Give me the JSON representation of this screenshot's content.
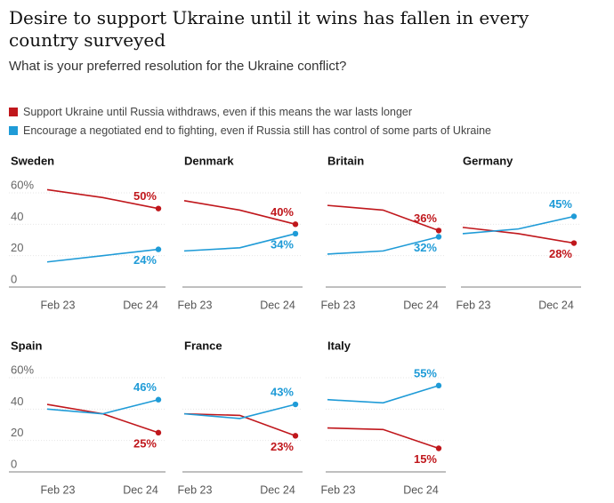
{
  "header": {
    "title": "Desire to support Ukraine until it wins has fallen in every country surveyed",
    "subtitle": "What is your preferred resolution for the Ukraine conflict?"
  },
  "legend": [
    {
      "name": "Support Ukraine until Russia withdraws, even if this means the war lasts longer",
      "color": "#c0171c"
    },
    {
      "name": "Encourage a negotiated end to fighting, even if Russia still has control of some parts of Ukraine",
      "color": "#1f9bd7"
    }
  ],
  "axes": {
    "ylim": [
      0,
      60
    ],
    "yticks": [
      0,
      20,
      40,
      {
        "value": 60,
        "label": "60%"
      }
    ],
    "grid": true
  },
  "chart_data": [
    {
      "type": "line",
      "title": "Sweden",
      "categories": [
        "Feb 23",
        null,
        "Dec 24"
      ],
      "series": [
        {
          "color": "#c0171c",
          "values": [
            62,
            57,
            50
          ],
          "value_labels": [
            null,
            null,
            "50%"
          ]
        },
        {
          "color": "#1f9bd7",
          "values": [
            16,
            20,
            24
          ],
          "value_labels": [
            null,
            null,
            "24%"
          ]
        }
      ]
    },
    {
      "type": "line",
      "title": "Denmark",
      "categories": [
        "Feb 23",
        null,
        "Dec 24"
      ],
      "series": [
        {
          "color": "#c0171c",
          "values": [
            55,
            49,
            40
          ],
          "value_labels": [
            null,
            null,
            "40%"
          ]
        },
        {
          "color": "#1f9bd7",
          "values": [
            23,
            25,
            34
          ],
          "value_labels": [
            null,
            null,
            "34%"
          ]
        }
      ]
    },
    {
      "type": "line",
      "title": "Britain",
      "categories": [
        "Feb 23",
        null,
        "Dec 24"
      ],
      "series": [
        {
          "color": "#c0171c",
          "values": [
            52,
            49,
            36
          ],
          "value_labels": [
            null,
            null,
            "36%"
          ]
        },
        {
          "color": "#1f9bd7",
          "values": [
            21,
            23,
            32
          ],
          "value_labels": [
            null,
            null,
            "32%"
          ]
        }
      ]
    },
    {
      "type": "line",
      "title": "Germany",
      "categories": [
        "Feb 23",
        null,
        "Dec 24"
      ],
      "series": [
        {
          "color": "#c0171c",
          "values": [
            38,
            34,
            28
          ],
          "value_labels": [
            null,
            null,
            "28%"
          ]
        },
        {
          "color": "#1f9bd7",
          "values": [
            34,
            37,
            45
          ],
          "value_labels": [
            null,
            null,
            "45%"
          ]
        }
      ]
    },
    {
      "type": "line",
      "title": "Spain",
      "categories": [
        "Feb 23",
        null,
        "Dec 24"
      ],
      "series": [
        {
          "color": "#c0171c",
          "values": [
            43,
            37,
            25
          ],
          "value_labels": [
            null,
            null,
            "25%"
          ]
        },
        {
          "color": "#1f9bd7",
          "values": [
            40,
            37,
            46
          ],
          "value_labels": [
            null,
            null,
            "46%"
          ]
        }
      ]
    },
    {
      "type": "line",
      "title": "France",
      "categories": [
        "Feb 23",
        null,
        "Dec 24"
      ],
      "series": [
        {
          "color": "#c0171c",
          "values": [
            37,
            36,
            23
          ],
          "value_labels": [
            null,
            null,
            "23%"
          ]
        },
        {
          "color": "#1f9bd7",
          "values": [
            37,
            34,
            43
          ],
          "value_labels": [
            null,
            null,
            "43%"
          ]
        }
      ]
    },
    {
      "type": "line",
      "title": "Italy",
      "categories": [
        "Feb 23",
        null,
        "Dec 24"
      ],
      "series": [
        {
          "color": "#c0171c",
          "values": [
            28,
            27,
            15
          ],
          "value_labels": [
            null,
            null,
            "15%"
          ]
        },
        {
          "color": "#1f9bd7",
          "values": [
            46,
            44,
            55
          ],
          "value_labels": [
            null,
            null,
            "55%"
          ]
        }
      ]
    }
  ]
}
